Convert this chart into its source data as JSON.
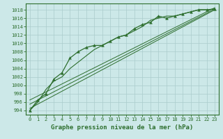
{
  "title": "Graphe pression niveau de la mer (hPa)",
  "bg_color": "#cce8e8",
  "grid_color": "#aacccc",
  "line_color": "#2d6e2d",
  "ylim": [
    993.0,
    1019.5
  ],
  "xlim": [
    -0.5,
    23.5
  ],
  "yticks": [
    994,
    996,
    998,
    1000,
    1002,
    1004,
    1006,
    1008,
    1010,
    1012,
    1014,
    1016,
    1018
  ],
  "xticks": [
    0,
    1,
    2,
    3,
    4,
    5,
    6,
    7,
    8,
    9,
    10,
    11,
    12,
    13,
    14,
    15,
    16,
    17,
    18,
    19,
    20,
    21,
    22,
    23
  ],
  "main_series": [
    994.0,
    996.5,
    998.0,
    1001.5,
    1003.0,
    1006.5,
    1008.0,
    1009.0,
    1009.5,
    1009.5,
    1010.5,
    1011.5,
    1012.0,
    1013.5,
    1014.5,
    1015.0,
    1016.5,
    1016.0,
    1016.5,
    1017.0,
    1017.5,
    1018.0,
    1018.0,
    1018.2
  ],
  "series2": [
    994.0,
    996.0,
    999.0,
    1001.0,
    1002.0,
    1004.0,
    1005.5,
    1007.0,
    1008.5,
    1009.5,
    1010.5,
    1011.5,
    1012.0,
    1013.0,
    1014.0,
    1015.5,
    1016.0,
    1016.5,
    1016.5,
    1017.0,
    1017.5,
    1018.0,
    1018.0,
    1018.2
  ],
  "trend1_y": [
    994.5,
    1018.0
  ],
  "trend2_y": [
    995.5,
    1018.2
  ],
  "trend3_y": [
    996.5,
    1018.5
  ]
}
